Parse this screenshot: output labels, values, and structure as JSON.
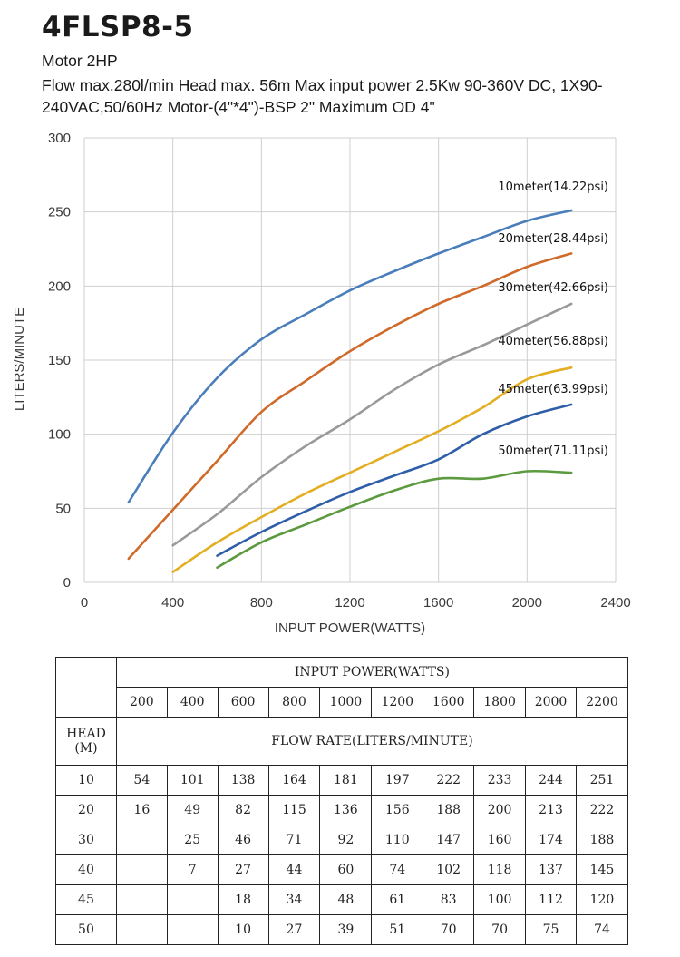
{
  "header": {
    "title": "4FLSP8-5",
    "subtitle": "Motor 2HP",
    "description": "Flow max.280l/min Head max. 56m Max input power 2.5Kw 90-360V DC, 1X90-240VAC,50/60Hz Motor-(4\"*4\")-BSP 2\" Maximum OD 4\""
  },
  "chart_data": {
    "type": "line",
    "xlabel": "INPUT POWER(WATTS)",
    "ylabel": "LITERS/MINUTE",
    "xlim": [
      0,
      2400
    ],
    "ylim": [
      0,
      300
    ],
    "xticks": [
      "0",
      "400",
      "800",
      "1200",
      "1600",
      "2000",
      "2400"
    ],
    "yticks": [
      "0",
      "50",
      "100",
      "150",
      "200",
      "250",
      "300"
    ],
    "grid": true,
    "x": [
      200,
      400,
      600,
      800,
      1000,
      1200,
      1400,
      1600,
      1800,
      2000,
      2200
    ],
    "series": [
      {
        "name": "10meter(14.22psi)",
        "color": "#4a7ebb",
        "values": [
          54,
          101,
          138,
          164,
          181,
          197,
          210,
          222,
          233,
          244,
          251
        ]
      },
      {
        "name": "20meter(28.44psi)",
        "color": "#d06a2a",
        "values": [
          16,
          49,
          82,
          115,
          136,
          156,
          173,
          188,
          200,
          213,
          222
        ]
      },
      {
        "name": "30meter(42.66psi)",
        "color": "#999999",
        "values": [
          null,
          25,
          46,
          71,
          92,
          110,
          130,
          147,
          160,
          174,
          188
        ]
      },
      {
        "name": "40meter(56.88psi)",
        "color": "#e3ae22",
        "values": [
          null,
          7,
          27,
          44,
          60,
          74,
          88,
          102,
          118,
          137,
          145
        ]
      },
      {
        "name": "45meter(63.99psi)",
        "color": "#2f5ea8",
        "values": [
          null,
          null,
          18,
          34,
          48,
          61,
          72,
          83,
          100,
          112,
          120
        ]
      },
      {
        "name": "50meter(71.11psi)",
        "color": "#5b9a3e",
        "values": [
          null,
          null,
          10,
          27,
          39,
          51,
          62,
          70,
          70,
          75,
          74
        ]
      }
    ]
  },
  "table": {
    "power_header": "INPUT POWER(WATTS)",
    "power_values": [
      "200",
      "400",
      "600",
      "800",
      "1000",
      "1200",
      "1600",
      "1800",
      "2000",
      "2200"
    ],
    "head_label": "HEAD",
    "head_unit": "(M)",
    "flow_header": "FLOW RATE(LITERS/MINUTE)",
    "rows": [
      {
        "head": "10",
        "cells": [
          "54",
          "101",
          "138",
          "164",
          "181",
          "197",
          "222",
          "233",
          "244",
          "251"
        ]
      },
      {
        "head": "20",
        "cells": [
          "16",
          "49",
          "82",
          "115",
          "136",
          "156",
          "188",
          "200",
          "213",
          "222"
        ]
      },
      {
        "head": "30",
        "cells": [
          "",
          "25",
          "46",
          "71",
          "92",
          "110",
          "147",
          "160",
          "174",
          "188"
        ]
      },
      {
        "head": "40",
        "cells": [
          "",
          "7",
          "27",
          "44",
          "60",
          "74",
          "102",
          "118",
          "137",
          "145"
        ]
      },
      {
        "head": "45",
        "cells": [
          "",
          "",
          "18",
          "34",
          "48",
          "61",
          "83",
          "100",
          "112",
          "120"
        ]
      },
      {
        "head": "50",
        "cells": [
          "",
          "",
          "10",
          "27",
          "39",
          "51",
          "70",
          "70",
          "75",
          "74"
        ]
      }
    ]
  }
}
